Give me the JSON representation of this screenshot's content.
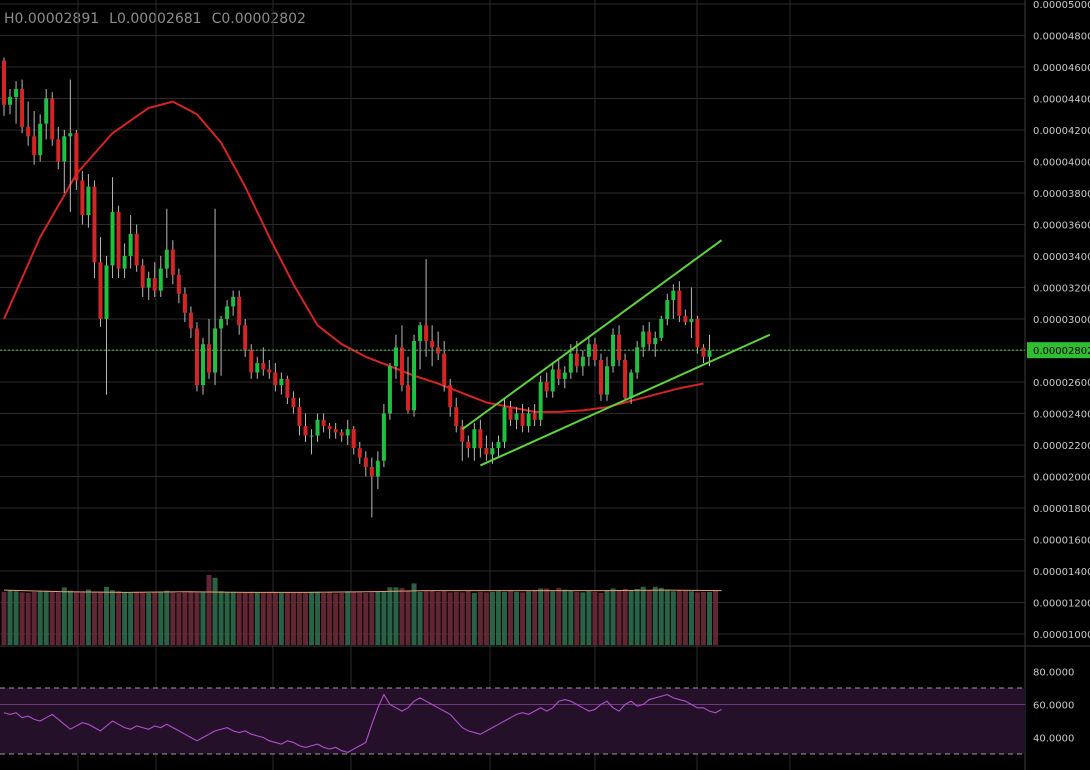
{
  "ohlc": {
    "high": "H0.00002891",
    "low": "L0.00002681",
    "close": "C0.00002802"
  },
  "colors": {
    "background": "#000000",
    "grid": "#2a2a2a",
    "up": "#1fbf3f",
    "down": "#d42525",
    "moving_average": "#d42525",
    "trend_lines": "#5fd33f",
    "last_price_line": "#3fbf3f",
    "rsi_line": "#b04fd0",
    "rsi_band": "#25102a"
  },
  "price_axis": {
    "ticks": [
      "0.00001000",
      "0.00001200",
      "0.00001400",
      "0.00001600",
      "0.00001800",
      "0.00002000",
      "0.00002200",
      "0.00002400",
      "0.00002600",
      "0.00003000",
      "0.00003200",
      "0.00003400",
      "0.00003600",
      "0.00003800",
      "0.00004000",
      "0.00004200",
      "0.00004400",
      "0.00004600",
      "0.00004800",
      "0.00005000"
    ],
    "last_price_label": "0.00002802"
  },
  "rsi_axis": {
    "ticks": [
      "80.0000",
      "60.0000",
      "40.0000"
    ]
  },
  "chart_data": [
    {
      "type": "candlestick",
      "title": "",
      "ylim": [
        9.3e-06,
        5e-05
      ],
      "last_price": 2.802e-05,
      "grid": true,
      "candles_ohlc": [
        [
          4.64e-05,
          4.66e-05,
          4.29e-05,
          4.36e-05
        ],
        [
          4.36e-05,
          4.46e-05,
          4.3e-05,
          4.41e-05
        ],
        [
          4.41e-05,
          4.51e-05,
          4.24e-05,
          4.46e-05
        ],
        [
          4.46e-05,
          4.52e-05,
          4.18e-05,
          4.22e-05
        ],
        [
          4.22e-05,
          4.38e-05,
          4.1e-05,
          4.16e-05
        ],
        [
          4.16e-05,
          4.32e-05,
          3.98e-05,
          4.04e-05
        ],
        [
          4.04e-05,
          4.3e-05,
          4e-05,
          4.24e-05
        ],
        [
          4.24e-05,
          4.46e-05,
          4.14e-05,
          4.4e-05
        ],
        [
          4.4e-05,
          4.44e-05,
          4.1e-05,
          4.14e-05
        ],
        [
          4.14e-05,
          4.22e-05,
          3.95e-05,
          4e-05
        ],
        [
          4e-05,
          4.2e-05,
          3.8e-05,
          4.16e-05
        ],
        [
          4.16e-05,
          4.52e-05,
          3.68e-05,
          4.18e-05
        ],
        [
          4.18e-05,
          4.2e-05,
          3.82e-05,
          3.88e-05
        ],
        [
          3.88e-05,
          3.94e-05,
          3.6e-05,
          3.66e-05
        ],
        [
          3.66e-05,
          3.92e-05,
          3.58e-05,
          3.84e-05
        ],
        [
          3.84e-05,
          3.88e-05,
          3.26e-05,
          3.36e-05
        ],
        [
          3.36e-05,
          3.52e-05,
          2.95e-05,
          3e-05
        ],
        [
          3e-05,
          3.4e-05,
          2.52e-05,
          3.34e-05
        ],
        [
          3.34e-05,
          3.9e-05,
          3.26e-05,
          3.68e-05
        ],
        [
          3.68e-05,
          3.72e-05,
          3.26e-05,
          3.32e-05
        ],
        [
          3.32e-05,
          3.48e-05,
          3.26e-05,
          3.4e-05
        ],
        [
          3.4e-05,
          3.66e-05,
          3.32e-05,
          3.54e-05
        ],
        [
          3.54e-05,
          3.6e-05,
          3.3e-05,
          3.34e-05
        ],
        [
          3.34e-05,
          3.38e-05,
          3.14e-05,
          3.2e-05
        ],
        [
          3.2e-05,
          3.3e-05,
          3.12e-05,
          3.26e-05
        ],
        [
          3.26e-05,
          3.36e-05,
          3.14e-05,
          3.18e-05
        ],
        [
          3.18e-05,
          3.4e-05,
          3.14e-05,
          3.32e-05
        ],
        [
          3.32e-05,
          3.7e-05,
          3.26e-05,
          3.44e-05
        ],
        [
          3.44e-05,
          3.5e-05,
          3.22e-05,
          3.28e-05
        ],
        [
          3.28e-05,
          3.32e-05,
          3.1e-05,
          3.16e-05
        ],
        [
          3.16e-05,
          3.2e-05,
          2.98e-05,
          3.04e-05
        ],
        [
          3.04e-05,
          3.08e-05,
          2.88e-05,
          2.94e-05
        ],
        [
          2.94e-05,
          2.98e-05,
          2.54e-05,
          2.58e-05
        ],
        [
          2.58e-05,
          2.88e-05,
          2.52e-05,
          2.84e-05
        ],
        [
          2.84e-05,
          3e-05,
          2.62e-05,
          2.66e-05
        ],
        [
          2.66e-05,
          3.7e-05,
          2.58e-05,
          2.94e-05
        ],
        [
          2.94e-05,
          3.02e-05,
          2.64e-05,
          3e-05
        ],
        [
          3e-05,
          3.12e-05,
          2.96e-05,
          3.08e-05
        ],
        [
          3.08e-05,
          3.18e-05,
          3.02e-05,
          3.14e-05
        ],
        [
          3.14e-05,
          3.18e-05,
          2.9e-05,
          2.96e-05
        ],
        [
          2.96e-05,
          3e-05,
          2.76e-05,
          2.8e-05
        ],
        [
          2.8e-05,
          2.84e-05,
          2.62e-05,
          2.66e-05
        ],
        [
          2.66e-05,
          2.76e-05,
          2.62e-05,
          2.72e-05
        ],
        [
          2.72e-05,
          2.82e-05,
          2.64e-05,
          2.68e-05
        ],
        [
          2.68e-05,
          2.74e-05,
          2.62e-05,
          2.66e-05
        ],
        [
          2.66e-05,
          2.72e-05,
          2.54e-05,
          2.58e-05
        ],
        [
          2.58e-05,
          2.66e-05,
          2.52e-05,
          2.62e-05
        ],
        [
          2.62e-05,
          2.64e-05,
          2.46e-05,
          2.5e-05
        ],
        [
          2.5e-05,
          2.54e-05,
          2.4e-05,
          2.44e-05
        ],
        [
          2.44e-05,
          2.5e-05,
          2.26e-05,
          2.32e-05
        ],
        [
          2.32e-05,
          2.4e-05,
          2.22e-05,
          2.26e-05
        ],
        [
          2.26e-05,
          2.3e-05,
          2.14e-05,
          2.26e-05
        ],
        [
          2.26e-05,
          2.4e-05,
          2.22e-05,
          2.36e-05
        ],
        [
          2.36e-05,
          2.4e-05,
          2.28e-05,
          2.32e-05
        ],
        [
          2.32e-05,
          2.34e-05,
          2.24e-05,
          2.3e-05
        ],
        [
          2.3e-05,
          2.34e-05,
          2.24e-05,
          2.28e-05
        ],
        [
          2.28e-05,
          2.3e-05,
          2.22e-05,
          2.26e-05
        ],
        [
          2.26e-05,
          2.36e-05,
          2.2e-05,
          2.3e-05
        ],
        [
          2.3e-05,
          2.32e-05,
          2.14e-05,
          2.18e-05
        ],
        [
          2.18e-05,
          2.22e-05,
          2.08e-05,
          2.12e-05
        ],
        [
          2.12e-05,
          2.16e-05,
          2e-05,
          2.06e-05
        ],
        [
          2.06e-05,
          2.12e-05,
          1.74e-05,
          2e-05
        ],
        [
          2e-05,
          2.16e-05,
          1.92e-05,
          2.1e-05
        ],
        [
          2.1e-05,
          2.46e-05,
          2.06e-05,
          2.4e-05
        ],
        [
          2.4e-05,
          2.72e-05,
          2.36e-05,
          2.7e-05
        ],
        [
          2.7e-05,
          2.9e-05,
          2.62e-05,
          2.82e-05
        ],
        [
          2.82e-05,
          2.96e-05,
          2.54e-05,
          2.58e-05
        ],
        [
          2.58e-05,
          2.76e-05,
          2.4e-05,
          2.42e-05
        ],
        [
          2.42e-05,
          2.9e-05,
          2.38e-05,
          2.86e-05
        ],
        [
          2.86e-05,
          2.98e-05,
          2.68e-05,
          2.96e-05
        ],
        [
          2.96e-05,
          3.38e-05,
          2.76e-05,
          2.86e-05
        ],
        [
          2.86e-05,
          2.96e-05,
          2.7e-05,
          2.82e-05
        ],
        [
          2.82e-05,
          2.92e-05,
          2.74e-05,
          2.78e-05
        ],
        [
          2.78e-05,
          2.86e-05,
          2.54e-05,
          2.58e-05
        ],
        [
          2.58e-05,
          2.62e-05,
          2.38e-05,
          2.44e-05
        ],
        [
          2.44e-05,
          2.5e-05,
          2.28e-05,
          2.32e-05
        ],
        [
          2.32e-05,
          2.36e-05,
          2.1e-05,
          2.22e-05
        ],
        [
          2.22e-05,
          2.26e-05,
          2.12e-05,
          2.18e-05
        ],
        [
          2.18e-05,
          2.34e-05,
          2.1e-05,
          2.3e-05
        ],
        [
          2.3e-05,
          2.36e-05,
          2.12e-05,
          2.18e-05
        ],
        [
          2.18e-05,
          2.26e-05,
          2.1e-05,
          2.14e-05
        ],
        [
          2.14e-05,
          2.22e-05,
          2.08e-05,
          2.18e-05
        ],
        [
          2.18e-05,
          2.26e-05,
          2.12e-05,
          2.22e-05
        ],
        [
          2.22e-05,
          2.5e-05,
          2.18e-05,
          2.44e-05
        ],
        [
          2.44e-05,
          2.48e-05,
          2.32e-05,
          2.36e-05
        ],
        [
          2.36e-05,
          2.44e-05,
          2.3e-05,
          2.4e-05
        ],
        [
          2.4e-05,
          2.46e-05,
          2.28e-05,
          2.32e-05
        ],
        [
          2.32e-05,
          2.44e-05,
          2.28e-05,
          2.4e-05
        ],
        [
          2.4e-05,
          2.46e-05,
          2.32e-05,
          2.36e-05
        ],
        [
          2.36e-05,
          2.64e-05,
          2.32e-05,
          2.6e-05
        ],
        [
          2.6e-05,
          2.66e-05,
          2.5e-05,
          2.54e-05
        ],
        [
          2.54e-05,
          2.72e-05,
          2.5e-05,
          2.68e-05
        ],
        [
          2.68e-05,
          2.74e-05,
          2.58e-05,
          2.62e-05
        ],
        [
          2.62e-05,
          2.7e-05,
          2.56e-05,
          2.66e-05
        ],
        [
          2.66e-05,
          2.84e-05,
          2.62e-05,
          2.78e-05
        ],
        [
          2.78e-05,
          2.86e-05,
          2.66e-05,
          2.7e-05
        ],
        [
          2.7e-05,
          2.8e-05,
          2.64e-05,
          2.76e-05
        ],
        [
          2.76e-05,
          2.88e-05,
          2.7e-05,
          2.84e-05
        ],
        [
          2.84e-05,
          2.88e-05,
          2.7e-05,
          2.74e-05
        ],
        [
          2.74e-05,
          2.78e-05,
          2.48e-05,
          2.52e-05
        ],
        [
          2.52e-05,
          2.76e-05,
          2.48e-05,
          2.7e-05
        ],
        [
          2.7e-05,
          2.94e-05,
          2.66e-05,
          2.9e-05
        ],
        [
          2.9e-05,
          2.96e-05,
          2.7e-05,
          2.74e-05
        ],
        [
          2.74e-05,
          2.78e-05,
          2.48e-05,
          2.5e-05
        ],
        [
          2.5e-05,
          2.68e-05,
          2.46e-05,
          2.66e-05
        ],
        [
          2.66e-05,
          2.86e-05,
          2.62e-05,
          2.82e-05
        ],
        [
          2.82e-05,
          2.96e-05,
          2.76e-05,
          2.92e-05
        ],
        [
          2.92e-05,
          2.98e-05,
          2.8e-05,
          2.84e-05
        ],
        [
          2.84e-05,
          2.92e-05,
          2.76e-05,
          2.88e-05
        ],
        [
          2.88e-05,
          3.02e-05,
          2.86e-05,
          3e-05
        ],
        [
          3e-05,
          3.16e-05,
          2.96e-05,
          3.12e-05
        ],
        [
          3.12e-05,
          3.22e-05,
          3e-05,
          3.18e-05
        ],
        [
          3.18e-05,
          3.24e-05,
          2.98e-05,
          3.02e-05
        ],
        [
          3.02e-05,
          3.06e-05,
          2.96e-05,
          2.98e-05
        ],
        [
          2.98e-05,
          3.2e-05,
          2.88e-05,
          3e-05
        ],
        [
          3e-05,
          3.02e-05,
          2.78e-05,
          2.82e-05
        ],
        [
          2.82e-05,
          2.84e-05,
          2.72e-05,
          2.76e-05
        ],
        [
          2.76e-05,
          2.9e-05,
          2.7e-05,
          2.8e-05
        ]
      ],
      "moving_average": [
        [
          0,
          3e-05
        ],
        [
          6,
          3.52e-05
        ],
        [
          12,
          3.92e-05
        ],
        [
          18,
          4.18e-05
        ],
        [
          24,
          4.34e-05
        ],
        [
          28,
          4.38e-05
        ],
        [
          32,
          4.3e-05
        ],
        [
          36,
          4.12e-05
        ],
        [
          40,
          3.84e-05
        ],
        [
          44,
          3.52e-05
        ],
        [
          48,
          3.22e-05
        ],
        [
          52,
          2.96e-05
        ],
        [
          56,
          2.84e-05
        ],
        [
          60,
          2.76e-05
        ],
        [
          64,
          2.7e-05
        ],
        [
          68,
          2.64e-05
        ],
        [
          72,
          2.59e-05
        ],
        [
          76,
          2.53e-05
        ],
        [
          80,
          2.47e-05
        ],
        [
          84,
          2.44e-05
        ],
        [
          88,
          2.41e-05
        ],
        [
          92,
          2.41e-05
        ],
        [
          96,
          2.42e-05
        ],
        [
          100,
          2.44e-05
        ],
        [
          104,
          2.48e-05
        ],
        [
          108,
          2.52e-05
        ],
        [
          112,
          2.56e-05
        ],
        [
          116,
          2.59e-05
        ]
      ],
      "trend_lines": [
        {
          "from": [
            76,
            2.3e-05
          ],
          "to": [
            119,
            3.5e-05
          ]
        },
        {
          "from": [
            79,
            2.07e-05
          ],
          "to": [
            127,
            2.9e-05
          ]
        }
      ]
    },
    {
      "type": "bar",
      "name": "volume",
      "ylim": [
        0,
        1.25e-05
      ],
      "values": [
        9.5e-06,
        9.8e-06,
        9.6e-06,
        9.4e-06,
        9.3e-06,
        9.5e-06,
        9.6e-06,
        9.7e-06,
        9.5e-06,
        9.4e-06,
        1.03e-05,
        9.7e-06,
        9.6e-06,
        9.4e-06,
        9.9e-06,
        9.5e-06,
        9.5e-06,
        1.04e-05,
        9.8e-06,
        9.6e-06,
        9.4e-06,
        9.3e-06,
        9.5e-06,
        9.4e-06,
        9.3e-06,
        9.5e-06,
        9.4e-06,
        9.7e-06,
        9.4e-06,
        9.3e-06,
        9.4e-06,
        9.6e-06,
        9.4e-06,
        9.5e-06,
        1.25e-05,
        1.2e-05,
        9.6e-06,
        9.5e-06,
        9.4e-06,
        9.3e-06,
        9.4e-06,
        9.5e-06,
        9.4e-06,
        9.3e-06,
        9.5e-06,
        9.4e-06,
        9.3e-06,
        9.4e-06,
        9.3e-06,
        9.4e-06,
        9.3e-06,
        9.4e-06,
        9.5e-06,
        9.3e-06,
        9.4e-06,
        9.2e-06,
        9.3e-06,
        9.6e-06,
        9.5e-06,
        9.4e-06,
        9.3e-06,
        9.4e-06,
        9.5e-06,
        9.6e-06,
        1.03e-05,
        1.03e-05,
        1.02e-05,
        9.7e-06,
        1.1e-05,
        9.5e-06,
        9.6e-06,
        9.7e-06,
        9.5e-06,
        9.6e-06,
        9.4e-06,
        9.5e-06,
        9.4e-06,
        9.6e-06,
        9.3e-06,
        9.5e-06,
        9.4e-06,
        9.5e-06,
        9.6e-06,
        9.5e-06,
        9.7e-06,
        9.5e-06,
        9.4e-06,
        9.6e-06,
        9.8e-06,
        1.01e-05,
        1.01e-05,
        9.6e-06,
        1.02e-05,
        9.9e-06,
        9.7e-06,
        9.5e-06,
        9.4e-06,
        9.6e-06,
        9.5e-06,
        9.3e-06,
        9.7e-06,
        1.01e-05,
        9.8e-06,
        1e-05,
        9.7e-06,
        1e-05,
        1.04e-05,
        9.7e-06,
        1.04e-05,
        1.02e-05,
        9.9e-06,
        9.6e-06,
        9.8e-06,
        9.7e-06,
        9.6e-06,
        9.4e-06,
        9.5e-06,
        9.5e-06,
        9.7e-06
      ],
      "average_line": [
        [
          0,
          9.8e-06
        ],
        [
          10,
          9.5e-06
        ],
        [
          20,
          9.4e-06
        ],
        [
          30,
          9.5e-06
        ],
        [
          40,
          9.4e-06
        ],
        [
          50,
          9.4e-06
        ],
        [
          60,
          9.5e-06
        ],
        [
          70,
          9.7e-06
        ],
        [
          80,
          9.7e-06
        ],
        [
          90,
          9.7e-06
        ],
        [
          100,
          9.7e-06
        ],
        [
          110,
          9.8e-06
        ],
        [
          119,
          9.7e-06
        ]
      ]
    },
    {
      "type": "line",
      "name": "RSI",
      "ylim": [
        30,
        87
      ],
      "bands": [
        70,
        60,
        30
      ],
      "values": [
        55,
        54,
        55,
        52,
        53,
        51,
        50,
        52,
        54,
        51,
        48,
        45,
        47,
        49,
        48,
        46,
        44,
        47,
        50,
        48,
        46,
        45,
        47,
        46,
        45,
        47,
        46,
        48,
        46,
        44,
        42,
        40,
        38,
        40,
        42,
        44,
        45,
        46,
        44,
        43,
        44,
        42,
        41,
        40,
        38,
        37,
        36,
        38,
        37,
        35,
        34,
        35,
        36,
        34,
        33,
        34,
        32,
        31,
        33,
        35,
        37,
        48,
        58,
        66,
        60,
        58,
        56,
        58,
        62,
        64,
        62,
        60,
        58,
        56,
        54,
        50,
        46,
        44,
        43,
        42,
        44,
        46,
        48,
        50,
        52,
        54,
        55,
        54,
        56,
        58,
        56,
        58,
        62,
        63,
        62,
        60,
        58,
        56,
        57,
        60,
        62,
        58,
        56,
        60,
        62,
        59,
        60,
        63,
        64,
        65,
        66,
        64,
        63,
        62,
        60,
        58,
        58,
        56,
        55,
        57
      ]
    }
  ]
}
